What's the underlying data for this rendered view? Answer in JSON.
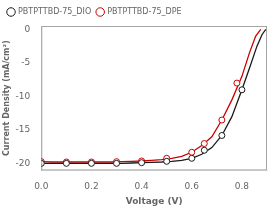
{
  "chart_data": {
    "type": "line",
    "xlabel": "Voltage (V)",
    "ylabel": "Current Density (mA/cm²)",
    "xlim": [
      0.0,
      0.9
    ],
    "ylim": [
      -21,
      0.5
    ],
    "xticks": [
      {
        "value": 0.0,
        "label": "0.0"
      },
      0.2,
      0.4,
      0.6,
      0.8
    ],
    "yticks": [
      0,
      -5,
      -10,
      -15,
      -20
    ],
    "grid": false,
    "legend": "upper left",
    "series": [
      {
        "name": "PBTPTTBD-75_DIO",
        "color": "#1a1a1a",
        "marker": "circle",
        "line_style": "solid",
        "x": [
          0.0,
          0.04,
          0.08,
          0.12,
          0.16,
          0.2,
          0.24,
          0.28,
          0.32,
          0.36,
          0.4,
          0.44,
          0.48,
          0.52,
          0.56,
          0.6,
          0.64,
          0.68,
          0.72,
          0.76,
          0.8,
          0.83,
          0.86,
          0.88,
          0.895
        ],
        "values": [
          -19.95,
          -19.95,
          -19.95,
          -19.95,
          -19.95,
          -19.95,
          -19.95,
          -19.95,
          -19.95,
          -19.9,
          -19.85,
          -19.8,
          -19.75,
          -19.65,
          -19.5,
          -19.2,
          -18.6,
          -17.6,
          -15.8,
          -13.0,
          -9.0,
          -5.8,
          -2.5,
          -0.8,
          0.0
        ],
        "markers": {
          "x": [
            0.0,
            0.1,
            0.2,
            0.3,
            0.4,
            0.5,
            0.6,
            0.65,
            0.72,
            0.8
          ],
          "values": [
            -19.95,
            -19.95,
            -19.95,
            -19.95,
            -19.85,
            -19.65,
            -19.2,
            -18.0,
            -15.8,
            -9.0
          ]
        }
      },
      {
        "name": "PBTPTTBD-75_DPE",
        "color": "#cc0000",
        "marker": "circle",
        "line_style": "solid",
        "x": [
          0.0,
          0.04,
          0.08,
          0.12,
          0.16,
          0.2,
          0.24,
          0.28,
          0.32,
          0.36,
          0.4,
          0.44,
          0.48,
          0.52,
          0.56,
          0.6,
          0.64,
          0.68,
          0.72,
          0.76,
          0.8,
          0.83,
          0.855,
          0.875
        ],
        "values": [
          -19.7,
          -19.75,
          -19.75,
          -19.75,
          -19.75,
          -19.75,
          -19.75,
          -19.75,
          -19.7,
          -19.65,
          -19.6,
          -19.5,
          -19.4,
          -19.2,
          -18.9,
          -18.3,
          -17.3,
          -16.0,
          -13.5,
          -10.5,
          -7.0,
          -3.5,
          -1.0,
          0.0
        ],
        "markers": {
          "x": [
            0.0,
            0.1,
            0.2,
            0.3,
            0.4,
            0.5,
            0.6,
            0.65,
            0.72,
            0.78
          ],
          "values": [
            -19.7,
            -19.75,
            -19.75,
            -19.7,
            -19.6,
            -19.2,
            -18.3,
            -17.0,
            -13.5,
            -8.0
          ]
        }
      }
    ]
  }
}
